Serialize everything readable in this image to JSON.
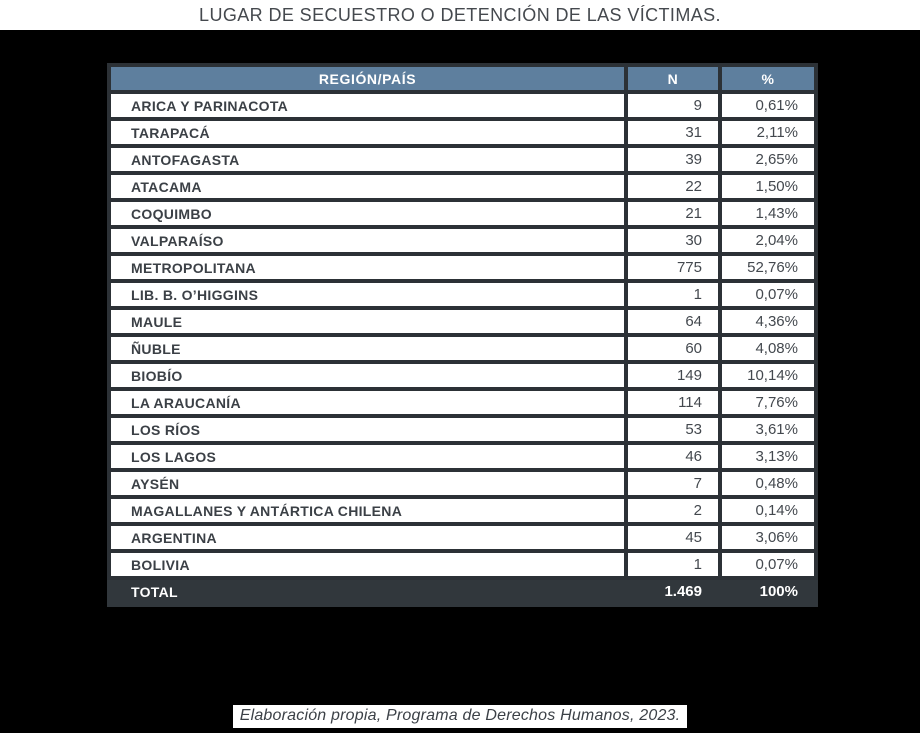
{
  "title": "LUGAR DE SECUESTRO O DETENCIÓN DE LAS VÍCTIMAS.",
  "caption": "Elaboración propia, Programa de Derechos Humanos, 2023.",
  "colors": {
    "page_bg": "#000000",
    "header_bg": "#5e7f9e",
    "table_border": "#2c3136",
    "total_row_bg": "#31373c",
    "title_color": "#45494e"
  },
  "table": {
    "columns": [
      "REGIÓN/PAÍS",
      "N",
      "%"
    ],
    "rows": [
      {
        "region": "ARICA Y PARINACOTA",
        "n": "9",
        "pct": "0,61%"
      },
      {
        "region": "TARAPACÁ",
        "n": "31",
        "pct": "2,11%"
      },
      {
        "region": "ANTOFAGASTA",
        "n": "39",
        "pct": "2,65%"
      },
      {
        "region": "ATACAMA",
        "n": "22",
        "pct": "1,50%"
      },
      {
        "region": "COQUIMBO",
        "n": "21",
        "pct": "1,43%"
      },
      {
        "region": "VALPARAÍSO",
        "n": "30",
        "pct": "2,04%"
      },
      {
        "region": "METROPOLITANA",
        "n": "775",
        "pct": "52,76%"
      },
      {
        "region": "LIB. B. O’HIGGINS",
        "n": "1",
        "pct": "0,07%"
      },
      {
        "region": "MAULE",
        "n": "64",
        "pct": "4,36%"
      },
      {
        "region": "ÑUBLE",
        "n": "60",
        "pct": "4,08%"
      },
      {
        "region": "BIOBÍO",
        "n": "149",
        "pct": "10,14%"
      },
      {
        "region": "LA ARAUCANÍA",
        "n": "114",
        "pct": "7,76%"
      },
      {
        "region": "LOS RÍOS",
        "n": "53",
        "pct": "3,61%"
      },
      {
        "region": "LOS LAGOS",
        "n": "46",
        "pct": "3,13%"
      },
      {
        "region": "AYSÉN",
        "n": "7",
        "pct": "0,48%"
      },
      {
        "region": "MAGALLANES Y ANTÁRTICA CHILENA",
        "n": "2",
        "pct": "0,14%"
      },
      {
        "region": "ARGENTINA",
        "n": "45",
        "pct": "3,06%"
      },
      {
        "region": "BOLIVIA",
        "n": "1",
        "pct": "0,07%"
      }
    ],
    "total": {
      "label": "TOTAL",
      "n": "1.469",
      "pct": "100%"
    }
  }
}
